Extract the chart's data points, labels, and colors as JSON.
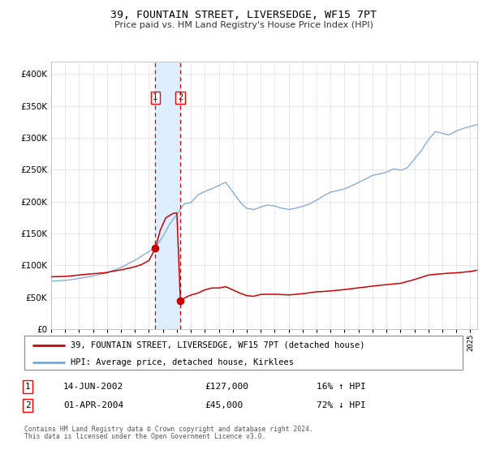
{
  "title": "39, FOUNTAIN STREET, LIVERSEDGE, WF15 7PT",
  "subtitle": "Price paid vs. HM Land Registry's House Price Index (HPI)",
  "legend_line1": "39, FOUNTAIN STREET, LIVERSEDGE, WF15 7PT (detached house)",
  "legend_line2": "HPI: Average price, detached house, Kirklees",
  "table_row1_num": "1",
  "table_row1_date": "14-JUN-2002",
  "table_row1_price": "£127,000",
  "table_row1_hpi": "16% ↑ HPI",
  "table_row2_num": "2",
  "table_row2_date": "01-APR-2004",
  "table_row2_price": "£45,000",
  "table_row2_hpi": "72% ↓ HPI",
  "footnote_line1": "Contains HM Land Registry data © Crown copyright and database right 2024.",
  "footnote_line2": "This data is licensed under the Open Government Licence v3.0.",
  "hpi_color": "#7ba7d4",
  "price_color": "#cc0000",
  "marker_color": "#cc0000",
  "vline_color": "#dd0000",
  "shade_color": "#ddeeff",
  "ylim": [
    0,
    420000
  ],
  "yticks": [
    0,
    50000,
    100000,
    150000,
    200000,
    250000,
    300000,
    350000,
    400000
  ],
  "sale1_date": 2002.45,
  "sale1_price": 127000,
  "sale2_date": 2004.25,
  "sale2_price": 45000,
  "xmin": 1995.0,
  "xmax": 2025.5,
  "hpi_anchors_t": [
    1995.0,
    1996.0,
    1997.0,
    1998.0,
    1999.0,
    2000.0,
    2001.0,
    2001.5,
    2002.0,
    2002.45,
    2003.0,
    2003.5,
    2004.0,
    2004.5,
    2005.0,
    2005.5,
    2006.0,
    2006.5,
    2007.0,
    2007.5,
    2008.0,
    2008.5,
    2009.0,
    2009.5,
    2010.0,
    2010.5,
    2011.0,
    2011.5,
    2012.0,
    2012.5,
    2013.0,
    2013.5,
    2014.0,
    2014.5,
    2015.0,
    2015.5,
    2016.0,
    2016.5,
    2017.0,
    2017.5,
    2018.0,
    2018.5,
    2019.0,
    2019.5,
    2020.0,
    2020.5,
    2021.0,
    2021.5,
    2022.0,
    2022.5,
    2023.0,
    2023.5,
    2024.0,
    2024.5,
    2025.0,
    2025.5
  ],
  "hpi_anchors_v": [
    75000,
    77000,
    80000,
    84000,
    89000,
    97000,
    108000,
    115000,
    122000,
    128000,
    145000,
    165000,
    180000,
    196000,
    198000,
    210000,
    215000,
    220000,
    225000,
    230000,
    215000,
    200000,
    190000,
    188000,
    192000,
    195000,
    193000,
    190000,
    188000,
    190000,
    193000,
    197000,
    203000,
    210000,
    215000,
    218000,
    220000,
    225000,
    230000,
    235000,
    240000,
    242000,
    245000,
    250000,
    248000,
    252000,
    265000,
    278000,
    295000,
    308000,
    305000,
    302000,
    308000,
    312000,
    315000,
    318000
  ],
  "price_anchors_t": [
    1995.0,
    1996.0,
    1997.0,
    1998.0,
    1999.0,
    2000.0,
    2001.0,
    2001.5,
    2002.0,
    2002.45,
    2002.8,
    2003.2,
    2003.7,
    2004.0,
    2004.25,
    2004.6,
    2005.0,
    2005.5,
    2006.0,
    2006.5,
    2007.0,
    2007.5,
    2008.0,
    2008.5,
    2009.0,
    2009.5,
    2010.0,
    2011.0,
    2012.0,
    2013.0,
    2014.0,
    2015.0,
    2016.0,
    2017.0,
    2018.0,
    2019.0,
    2020.0,
    2021.0,
    2022.0,
    2023.0,
    2024.0,
    2025.0,
    2025.5
  ],
  "price_anchors_v": [
    82000,
    83000,
    85000,
    87000,
    89000,
    93000,
    98000,
    102000,
    108000,
    127000,
    155000,
    175000,
    182000,
    183000,
    45000,
    50000,
    54000,
    57000,
    62000,
    65000,
    65000,
    67000,
    62000,
    57000,
    53000,
    52000,
    55000,
    55000,
    54000,
    56000,
    59000,
    60000,
    62000,
    65000,
    68000,
    70000,
    72000,
    78000,
    85000,
    87000,
    88000,
    90000,
    92000
  ]
}
